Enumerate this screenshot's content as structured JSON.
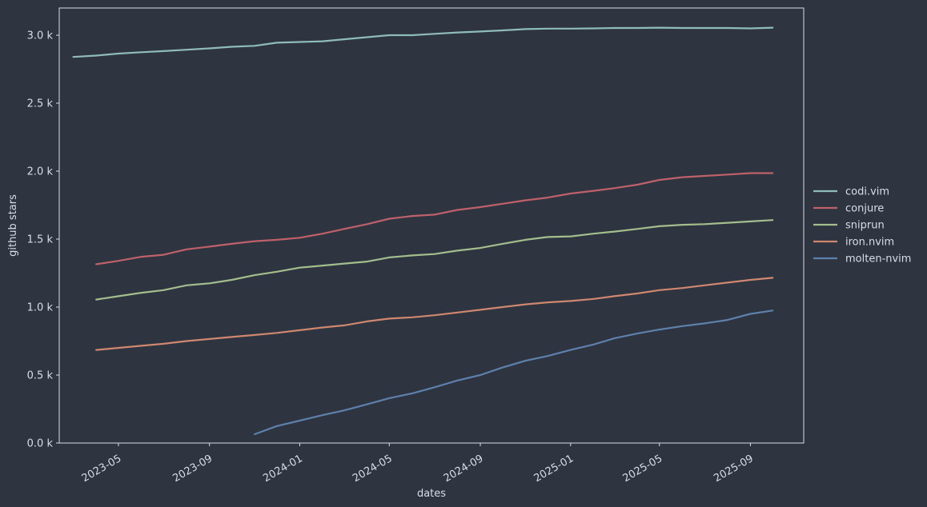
{
  "chart_data": {
    "type": "line",
    "xlabel": "dates",
    "ylabel": "github stars",
    "xlim": [
      "2023-02-10",
      "2025-11-12"
    ],
    "ylim": [
      0,
      3200
    ],
    "x_ticks": [
      "2023-05",
      "2023-09",
      "2024-01",
      "2024-05",
      "2024-09",
      "2025-01",
      "2025-05",
      "2025-09"
    ],
    "y_ticks": [
      "0.0 k",
      "0.5 k",
      "1.0 k",
      "1.5 k",
      "2.0 k",
      "2.5 k",
      "3.0 k"
    ],
    "y_tick_values": [
      0,
      500,
      1000,
      1500,
      2000,
      2500,
      3000
    ],
    "grid": false,
    "legend_position": "right",
    "colors": {
      "background": "#2e3440",
      "frame": "#d8dee9",
      "text": "#d8dee9"
    },
    "series": [
      {
        "name": "codi.vim",
        "color": "#8fbcbb",
        "x": [
          "2023-03-01",
          "2023-04-01",
          "2023-05-01",
          "2023-06-01",
          "2023-07-01",
          "2023-08-01",
          "2023-09-01",
          "2023-10-01",
          "2023-11-01",
          "2023-12-01",
          "2024-01-01",
          "2024-02-01",
          "2024-03-01",
          "2024-04-01",
          "2024-05-01",
          "2024-06-01",
          "2024-07-01",
          "2024-08-01",
          "2024-09-01",
          "2024-10-01",
          "2024-11-01",
          "2024-12-01",
          "2025-01-01",
          "2025-02-01",
          "2025-03-01",
          "2025-04-01",
          "2025-05-01",
          "2025-06-01",
          "2025-07-01",
          "2025-08-01",
          "2025-09-01",
          "2025-10-01"
        ],
        "y": [
          2840,
          2850,
          2865,
          2875,
          2883,
          2893,
          2903,
          2915,
          2922,
          2945,
          2950,
          2955,
          2970,
          2985,
          3000,
          3000,
          3010,
          3020,
          3027,
          3035,
          3045,
          3048,
          3048,
          3050,
          3053,
          3053,
          3055,
          3053,
          3053,
          3053,
          3050,
          3055
        ]
      },
      {
        "name": "conjure",
        "color": "#bf616a",
        "x": [
          "2023-04-01",
          "2023-05-01",
          "2023-06-01",
          "2023-07-01",
          "2023-08-01",
          "2023-09-01",
          "2023-10-01",
          "2023-11-01",
          "2023-12-01",
          "2024-01-01",
          "2024-02-01",
          "2024-03-01",
          "2024-04-01",
          "2024-05-01",
          "2024-06-01",
          "2024-07-01",
          "2024-08-01",
          "2024-09-01",
          "2024-10-01",
          "2024-11-01",
          "2024-12-01",
          "2025-01-01",
          "2025-02-01",
          "2025-03-01",
          "2025-04-01",
          "2025-05-01",
          "2025-06-01",
          "2025-07-01",
          "2025-08-01",
          "2025-09-01",
          "2025-10-01"
        ],
        "y": [
          1315,
          1340,
          1370,
          1385,
          1425,
          1445,
          1465,
          1485,
          1495,
          1510,
          1540,
          1575,
          1610,
          1650,
          1670,
          1680,
          1715,
          1735,
          1760,
          1785,
          1805,
          1835,
          1855,
          1875,
          1900,
          1935,
          1955,
          1965,
          1975,
          1985,
          1985
        ]
      },
      {
        "name": "sniprun",
        "color": "#a3be8c",
        "x": [
          "2023-04-01",
          "2023-05-01",
          "2023-06-01",
          "2023-07-01",
          "2023-08-01",
          "2023-09-01",
          "2023-10-01",
          "2023-11-01",
          "2023-12-01",
          "2024-01-01",
          "2024-02-01",
          "2024-03-01",
          "2024-04-01",
          "2024-05-01",
          "2024-06-01",
          "2024-07-01",
          "2024-08-01",
          "2024-09-01",
          "2024-10-01",
          "2024-11-01",
          "2024-12-01",
          "2025-01-01",
          "2025-02-01",
          "2025-03-01",
          "2025-04-01",
          "2025-05-01",
          "2025-06-01",
          "2025-07-01",
          "2025-08-01",
          "2025-09-01",
          "2025-10-01"
        ],
        "y": [
          1055,
          1080,
          1105,
          1125,
          1160,
          1175,
          1200,
          1235,
          1260,
          1290,
          1305,
          1320,
          1335,
          1365,
          1380,
          1390,
          1415,
          1435,
          1465,
          1495,
          1515,
          1520,
          1540,
          1555,
          1575,
          1595,
          1605,
          1610,
          1620,
          1630,
          1640
        ]
      },
      {
        "name": "iron.nvim",
        "color": "#d08770",
        "x": [
          "2023-04-01",
          "2023-05-01",
          "2023-06-01",
          "2023-07-01",
          "2023-08-01",
          "2023-09-01",
          "2023-10-01",
          "2023-11-01",
          "2023-12-01",
          "2024-01-01",
          "2024-02-01",
          "2024-03-01",
          "2024-04-01",
          "2024-05-01",
          "2024-06-01",
          "2024-07-01",
          "2024-08-01",
          "2024-09-01",
          "2024-10-01",
          "2024-11-01",
          "2024-12-01",
          "2025-01-01",
          "2025-02-01",
          "2025-03-01",
          "2025-04-01",
          "2025-05-01",
          "2025-06-01",
          "2025-07-01",
          "2025-08-01",
          "2025-09-01",
          "2025-10-01"
        ],
        "y": [
          685,
          700,
          715,
          730,
          750,
          765,
          780,
          795,
          810,
          830,
          850,
          865,
          895,
          915,
          925,
          940,
          960,
          980,
          1000,
          1020,
          1035,
          1045,
          1060,
          1080,
          1100,
          1125,
          1140,
          1160,
          1180,
          1200,
          1215
        ]
      },
      {
        "name": "molten-nvim",
        "color": "#5e81ac",
        "x": [
          "2023-11-01",
          "2023-12-01",
          "2024-01-01",
          "2024-02-01",
          "2024-03-01",
          "2024-04-01",
          "2024-05-01",
          "2024-06-01",
          "2024-07-01",
          "2024-08-01",
          "2024-09-01",
          "2024-10-01",
          "2024-11-01",
          "2024-12-01",
          "2025-01-01",
          "2025-02-01",
          "2025-03-01",
          "2025-04-01",
          "2025-05-01",
          "2025-06-01",
          "2025-07-01",
          "2025-08-01",
          "2025-09-01",
          "2025-10-01"
        ],
        "y": [
          65,
          125,
          165,
          205,
          240,
          285,
          330,
          365,
          410,
          460,
          500,
          555,
          605,
          640,
          685,
          725,
          770,
          805,
          835,
          860,
          880,
          905,
          950,
          975
        ]
      }
    ]
  }
}
